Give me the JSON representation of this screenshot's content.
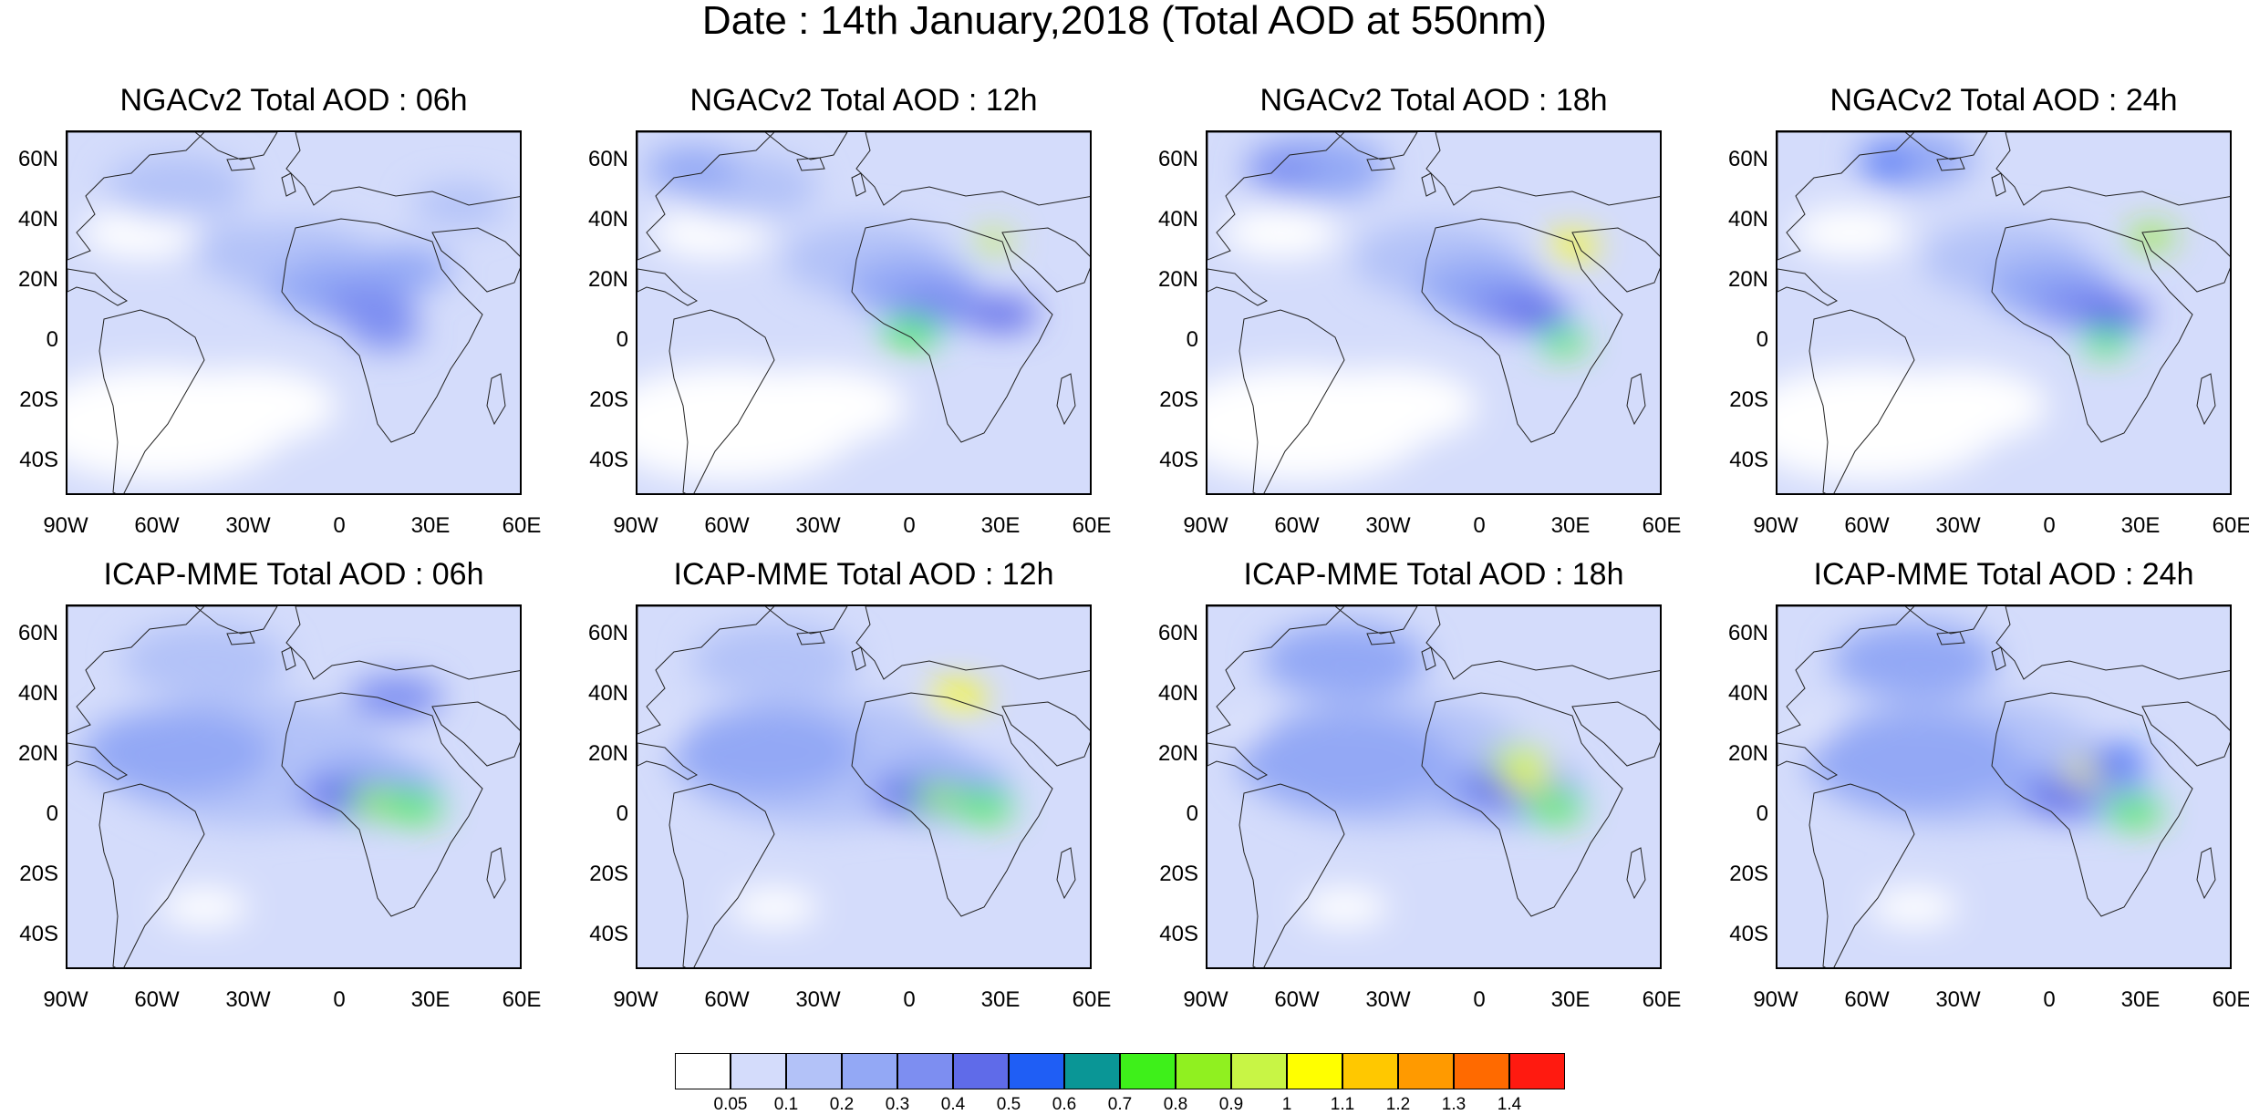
{
  "title": "Date : 14th January,2018 (Total AOD at 550nm)",
  "panels": [
    {
      "title": "NGACv2 Total AOD : 06h"
    },
    {
      "title": "NGACv2 Total AOD : 12h"
    },
    {
      "title": "NGACv2 Total AOD : 18h"
    },
    {
      "title": "NGACv2 Total AOD : 24h"
    },
    {
      "title": "ICAP-MME Total AOD : 06h"
    },
    {
      "title": "ICAP-MME Total AOD : 12h"
    },
    {
      "title": "ICAP-MME Total AOD : 18h"
    },
    {
      "title": "ICAP-MME Total AOD : 24h"
    }
  ],
  "lat_labels": [
    "60N",
    "40N",
    "20N",
    "0",
    "20S",
    "40S"
  ],
  "lon_labels": [
    "90W",
    "60W",
    "30W",
    "0",
    "30E",
    "60E"
  ],
  "colorbar": {
    "labels": [
      "0.05",
      "0.1",
      "0.2",
      "0.3",
      "0.4",
      "0.5",
      "0.6",
      "0.7",
      "0.8",
      "0.9",
      "1",
      "1.1",
      "1.2",
      "1.3",
      "1.4"
    ],
    "colors": [
      "#ffffff",
      "#d4dcfb",
      "#b3c2f8",
      "#93a8f5",
      "#7d8ef1",
      "#5f6be9",
      "#1f5ef5",
      "#0a9696",
      "#3ef01a",
      "#90f020",
      "#c8f545",
      "#ffff00",
      "#ffc800",
      "#ff9a00",
      "#ff6a00",
      "#ff1a10"
    ]
  }
}
